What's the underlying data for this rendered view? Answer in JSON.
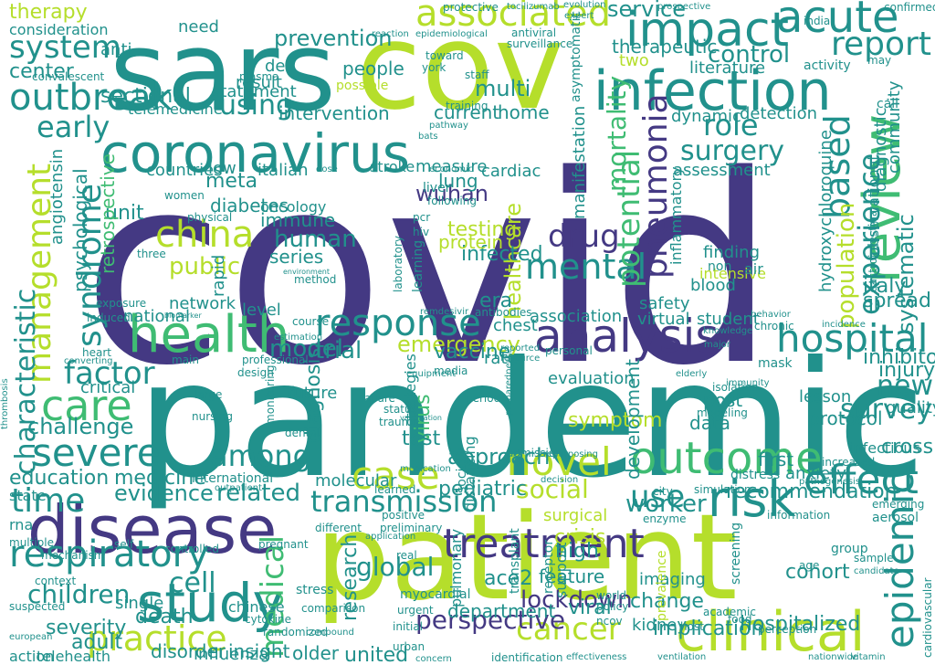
{
  "cloud": {
    "palette": {
      "indigo": "#443983",
      "teal": "#21918c",
      "green": "#3fbc73",
      "lime": "#b5de2b",
      "blue": "#31688e",
      "purple": "#472d7b"
    },
    "words": [
      {
        "text": "covid"
      },
      {
        "text": "pandemic"
      },
      {
        "text": "patient"
      },
      {
        "text": "sars"
      },
      {
        "text": "cov"
      },
      {
        "text": "coronavirus"
      },
      {
        "text": "infection"
      },
      {
        "text": "disease"
      },
      {
        "text": "health"
      },
      {
        "text": "study"
      },
      {
        "text": "clinical"
      },
      {
        "text": "review"
      },
      {
        "text": "impact"
      },
      {
        "text": "acute"
      },
      {
        "text": "hospital"
      },
      {
        "text": "analysis"
      },
      {
        "text": "outbreak"
      },
      {
        "text": "treatment"
      },
      {
        "text": "case"
      },
      {
        "text": "risk"
      },
      {
        "text": "outcome"
      },
      {
        "text": "epidemic"
      },
      {
        "text": "care"
      },
      {
        "text": "respiratory"
      },
      {
        "text": "management"
      },
      {
        "text": "severe"
      },
      {
        "text": "response"
      },
      {
        "text": "novel"
      },
      {
        "text": "effect"
      },
      {
        "text": "associated"
      },
      {
        "text": "report"
      },
      {
        "text": "system"
      },
      {
        "text": "china"
      },
      {
        "text": "pneumonia"
      },
      {
        "text": "mental"
      },
      {
        "text": "potential"
      },
      {
        "text": "based"
      },
      {
        "text": "syndrome"
      },
      {
        "text": "factor"
      },
      {
        "text": "time"
      },
      {
        "text": "practice"
      },
      {
        "text": "transmission"
      },
      {
        "text": "medical"
      },
      {
        "text": "cancer"
      },
      {
        "text": "drug"
      },
      {
        "text": "role"
      },
      {
        "text": "mortality"
      },
      {
        "text": "experience"
      },
      {
        "text": "among"
      },
      {
        "text": "early"
      },
      {
        "text": "using"
      },
      {
        "text": "use"
      },
      {
        "text": "lockdown"
      },
      {
        "text": "perspective"
      },
      {
        "text": "children"
      },
      {
        "text": "characteristic"
      },
      {
        "text": "emergency"
      },
      {
        "text": "new"
      },
      {
        "text": "survey"
      },
      {
        "text": "cell"
      },
      {
        "text": "social"
      },
      {
        "text": "worker"
      },
      {
        "text": "global"
      },
      {
        "text": "population"
      },
      {
        "text": "surgery"
      },
      {
        "text": "prevention"
      },
      {
        "text": "control"
      },
      {
        "text": "therapy"
      },
      {
        "text": "service"
      },
      {
        "text": "model"
      },
      {
        "text": "trial"
      },
      {
        "text": "challenge"
      },
      {
        "text": "evidence"
      },
      {
        "text": "related"
      },
      {
        "text": "research"
      },
      {
        "text": "human"
      },
      {
        "text": "public"
      },
      {
        "text": "wuhan"
      },
      {
        "text": "testing"
      },
      {
        "text": "diagnosis"
      },
      {
        "text": "healthcare"
      },
      {
        "text": "systematic"
      },
      {
        "text": "vaccine"
      },
      {
        "text": "pediatric"
      },
      {
        "text": "approach"
      },
      {
        "text": "education"
      },
      {
        "text": "medicine"
      },
      {
        "text": "recommendation"
      },
      {
        "text": "cross"
      },
      {
        "text": "italy"
      },
      {
        "text": "spread"
      },
      {
        "text": "inhibitor"
      },
      {
        "text": "injury"
      },
      {
        "text": "infected"
      },
      {
        "text": "virus"
      },
      {
        "text": "symptom"
      },
      {
        "text": "test"
      },
      {
        "text": "high"
      },
      {
        "text": "crisis"
      },
      {
        "text": "ace2"
      },
      {
        "text": "severity"
      },
      {
        "text": "death"
      },
      {
        "text": "adult"
      },
      {
        "text": "united"
      },
      {
        "text": "older"
      },
      {
        "text": "insight"
      },
      {
        "text": "disorder"
      },
      {
        "text": "influenza"
      },
      {
        "text": "telehealth"
      },
      {
        "text": "action"
      },
      {
        "text": "implication"
      },
      {
        "text": "hospitalized"
      },
      {
        "text": "kidney"
      },
      {
        "text": "cohort"
      },
      {
        "text": "department"
      },
      {
        "text": "feature"
      },
      {
        "text": "change"
      },
      {
        "text": "viral"
      },
      {
        "text": "imaging"
      },
      {
        "text": "protocol"
      },
      {
        "text": "quality"
      },
      {
        "text": "data"
      },
      {
        "text": "post"
      },
      {
        "text": "lesson"
      },
      {
        "text": "development"
      },
      {
        "text": "first"
      },
      {
        "text": "anxiety"
      },
      {
        "text": "infectious"
      },
      {
        "text": "immune"
      },
      {
        "text": "oncology"
      },
      {
        "text": "meta"
      },
      {
        "text": "diabetes"
      },
      {
        "text": "series"
      },
      {
        "text": "rapid"
      },
      {
        "text": "network"
      },
      {
        "text": "level"
      },
      {
        "text": "national"
      },
      {
        "text": "critical"
      },
      {
        "text": "unit"
      },
      {
        "text": "retrospective"
      },
      {
        "text": "psychological"
      },
      {
        "text": "angiotensin"
      },
      {
        "text": "sectional"
      },
      {
        "text": "center"
      },
      {
        "text": "intervention"
      },
      {
        "text": "current"
      },
      {
        "text": "home"
      },
      {
        "text": "people"
      },
      {
        "text": "result"
      },
      {
        "text": "statement"
      },
      {
        "text": "telemedicine"
      },
      {
        "text": "countries"
      },
      {
        "text": "italian"
      },
      {
        "text": "low"
      },
      {
        "text": "measure"
      },
      {
        "text": "stroke"
      },
      {
        "text": "cardiac"
      },
      {
        "text": "lung"
      },
      {
        "text": "protein"
      },
      {
        "text": "dynamic"
      },
      {
        "text": "detection"
      },
      {
        "text": "manifestation"
      },
      {
        "text": "assessment"
      },
      {
        "text": "inflammatory"
      },
      {
        "text": "intensive"
      },
      {
        "text": "finding"
      },
      {
        "text": "blood"
      },
      {
        "text": "hydroxychloroquine"
      },
      {
        "text": "observational"
      },
      {
        "text": "community"
      },
      {
        "text": "diagnostic"
      },
      {
        "text": "therapeutic"
      },
      {
        "text": "literature"
      },
      {
        "text": "multi"
      },
      {
        "text": "two"
      },
      {
        "text": "consideration"
      },
      {
        "text": "anti"
      },
      {
        "text": "need"
      },
      {
        "text": "de"
      },
      {
        "text": "era"
      },
      {
        "text": "safety"
      },
      {
        "text": "association"
      },
      {
        "text": "virtual"
      },
      {
        "text": "student"
      },
      {
        "text": "chest"
      },
      {
        "text": "rate"
      },
      {
        "text": "evaluation"
      },
      {
        "text": "future"
      },
      {
        "text": "molecular"
      },
      {
        "text": "state"
      },
      {
        "text": "rna"
      },
      {
        "text": "single"
      },
      {
        "text": "chinese"
      },
      {
        "text": "international"
      },
      {
        "text": "strategies"
      },
      {
        "text": "distancing"
      },
      {
        "text": "society"
      },
      {
        "text": "surgical"
      },
      {
        "text": "transplant"
      },
      {
        "text": "pulmonary"
      },
      {
        "text": "support"
      },
      {
        "text": "prevalence"
      },
      {
        "text": "receptor"
      },
      {
        "text": "screening"
      },
      {
        "text": "air"
      },
      {
        "text": "non"
      },
      {
        "text": "protective"
      },
      {
        "text": "antiviral"
      },
      {
        "text": "epidemiological"
      },
      {
        "text": "tocilizumab"
      },
      {
        "text": "confirmed"
      },
      {
        "text": "india"
      },
      {
        "text": "possible"
      },
      {
        "text": "activity"
      },
      {
        "text": "may"
      },
      {
        "text": "call"
      },
      {
        "text": "plasma"
      },
      {
        "text": "staff"
      },
      {
        "text": "training"
      },
      {
        "text": "asymptomatic"
      },
      {
        "text": "economic"
      },
      {
        "text": "liver"
      },
      {
        "text": "following"
      },
      {
        "text": "pcr"
      },
      {
        "text": "hiv"
      },
      {
        "text": "learning"
      },
      {
        "text": "laboratory"
      },
      {
        "text": "antibodies"
      },
      {
        "text": "method"
      },
      {
        "text": "exposure"
      },
      {
        "text": "induced"
      },
      {
        "text": "heart"
      },
      {
        "text": "course"
      },
      {
        "text": "professional"
      },
      {
        "text": "design"
      },
      {
        "text": "monitoring"
      },
      {
        "text": "dental"
      },
      {
        "text": "failure"
      },
      {
        "text": "period"
      },
      {
        "text": "status"
      },
      {
        "text": "preparedness"
      },
      {
        "text": "elderly"
      },
      {
        "text": "mask"
      },
      {
        "text": "isolation"
      },
      {
        "text": "immunity"
      },
      {
        "text": "distress"
      },
      {
        "text": "simulation"
      },
      {
        "text": "increased"
      },
      {
        "text": "gastrointestinal"
      },
      {
        "text": "cardiovascular"
      },
      {
        "text": "aerosol"
      },
      {
        "text": "emerging"
      },
      {
        "text": "information"
      },
      {
        "text": "group"
      },
      {
        "text": "sample"
      },
      {
        "text": "candidate"
      },
      {
        "text": "age"
      },
      {
        "text": "food"
      },
      {
        "text": "perception"
      },
      {
        "text": "academic"
      },
      {
        "text": "host"
      },
      {
        "text": "ncov"
      },
      {
        "text": "world"
      },
      {
        "text": "policy"
      },
      {
        "text": "myocardial"
      },
      {
        "text": "comparison"
      },
      {
        "text": "stress"
      },
      {
        "text": "cytokine"
      },
      {
        "text": "randomized"
      },
      {
        "text": "controlled"
      },
      {
        "text": "self"
      },
      {
        "text": "pregnant"
      },
      {
        "text": "mechanism"
      },
      {
        "text": "multiple"
      },
      {
        "text": "context"
      },
      {
        "text": "suspected"
      },
      {
        "text": "european"
      },
      {
        "text": "compound"
      },
      {
        "text": "urban"
      },
      {
        "text": "initial"
      },
      {
        "text": "urgent"
      },
      {
        "text": "positive"
      },
      {
        "text": "learned"
      },
      {
        "text": "different"
      },
      {
        "text": "preliminary"
      },
      {
        "text": "real"
      },
      {
        "text": "admission"
      },
      {
        "text": "repurposing"
      },
      {
        "text": "decision"
      },
      {
        "text": "city"
      },
      {
        "text": "enzyme"
      },
      {
        "text": "remdesivir"
      },
      {
        "text": "outpatient"
      },
      {
        "text": "pathogenesis"
      },
      {
        "text": "knowledge"
      },
      {
        "text": "chronic"
      },
      {
        "text": "behavior"
      },
      {
        "text": "incidence"
      },
      {
        "text": "toward"
      },
      {
        "text": "york"
      },
      {
        "text": "dose"
      },
      {
        "text": "estimation"
      },
      {
        "text": "biomarker"
      },
      {
        "text": "environment"
      },
      {
        "text": "bats"
      },
      {
        "text": "three"
      },
      {
        "text": "women"
      },
      {
        "text": "physical"
      },
      {
        "text": "large"
      },
      {
        "text": "nursing"
      },
      {
        "text": "trauma"
      },
      {
        "text": "medication"
      },
      {
        "text": "vaccination"
      },
      {
        "text": "identification"
      },
      {
        "text": "concern"
      },
      {
        "text": "ventilation"
      },
      {
        "text": "nationwide"
      },
      {
        "text": "vitamin"
      },
      {
        "text": "effectiveness"
      },
      {
        "text": "surveillance"
      },
      {
        "text": "reaction"
      },
      {
        "text": "evolution"
      },
      {
        "text": "prospective"
      },
      {
        "text": "modeling"
      },
      {
        "text": "resource"
      },
      {
        "text": "media"
      },
      {
        "text": "equipment"
      },
      {
        "text": "personal"
      },
      {
        "text": "reported"
      },
      {
        "text": "major"
      },
      {
        "text": "application"
      },
      {
        "text": "converting"
      },
      {
        "text": "thrombosis"
      },
      {
        "text": "main"
      },
      {
        "text": "convalescent"
      },
      {
        "text": "pathway"
      },
      {
        "text": "expert"
      },
      {
        "text": "convalescent"
      }
    ]
  }
}
